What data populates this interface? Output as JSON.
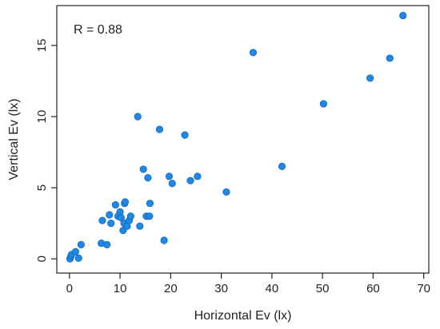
{
  "chart_data": {
    "type": "scatter",
    "title": "",
    "xlabel": "Horizontal Ev (lx)",
    "ylabel": "Vertical Ev (lx)",
    "xlim": [
      -2.5,
      71
    ],
    "ylim": [
      -1.0,
      17.8
    ],
    "xticks": [
      0,
      10,
      20,
      30,
      40,
      50,
      60,
      70
    ],
    "yticks": [
      0,
      5,
      10,
      15
    ],
    "grid": false,
    "legend": "none",
    "annotation": "R = 0.88",
    "marker_color": "#1e88e5",
    "marker_edge": "#1565c0",
    "series": [
      {
        "points": [
          [
            0.1,
            0.0
          ],
          [
            0.3,
            0.2
          ],
          [
            0.4,
            0.3
          ],
          [
            1.2,
            0.5
          ],
          [
            1.8,
            0.05
          ],
          [
            2.3,
            1.0
          ],
          [
            6.3,
            1.1
          ],
          [
            7.4,
            1.0
          ],
          [
            6.5,
            2.7
          ],
          [
            7.9,
            3.1
          ],
          [
            8.2,
            2.5
          ],
          [
            9.1,
            3.8
          ],
          [
            9.6,
            3.0
          ],
          [
            10.0,
            3.3
          ],
          [
            10.2,
            2.9
          ],
          [
            10.6,
            2.0
          ],
          [
            10.8,
            2.5
          ],
          [
            10.9,
            3.9
          ],
          [
            11.0,
            4.0
          ],
          [
            11.4,
            2.3
          ],
          [
            11.8,
            2.7
          ],
          [
            12.1,
            3.0
          ],
          [
            13.5,
            10.0
          ],
          [
            13.9,
            2.3
          ],
          [
            14.6,
            6.3
          ],
          [
            15.2,
            3.0
          ],
          [
            15.5,
            5.7
          ],
          [
            15.8,
            3.0
          ],
          [
            15.9,
            3.9
          ],
          [
            17.8,
            9.1
          ],
          [
            18.7,
            1.3
          ],
          [
            19.7,
            5.8
          ],
          [
            20.3,
            5.3
          ],
          [
            22.8,
            8.7
          ],
          [
            23.9,
            5.5
          ],
          [
            25.3,
            5.8
          ],
          [
            31.0,
            4.7
          ],
          [
            36.3,
            14.5
          ],
          [
            42.0,
            6.5
          ],
          [
            50.2,
            10.9
          ],
          [
            59.4,
            12.7
          ],
          [
            63.3,
            14.1
          ],
          [
            65.9,
            17.1
          ]
        ]
      }
    ]
  }
}
